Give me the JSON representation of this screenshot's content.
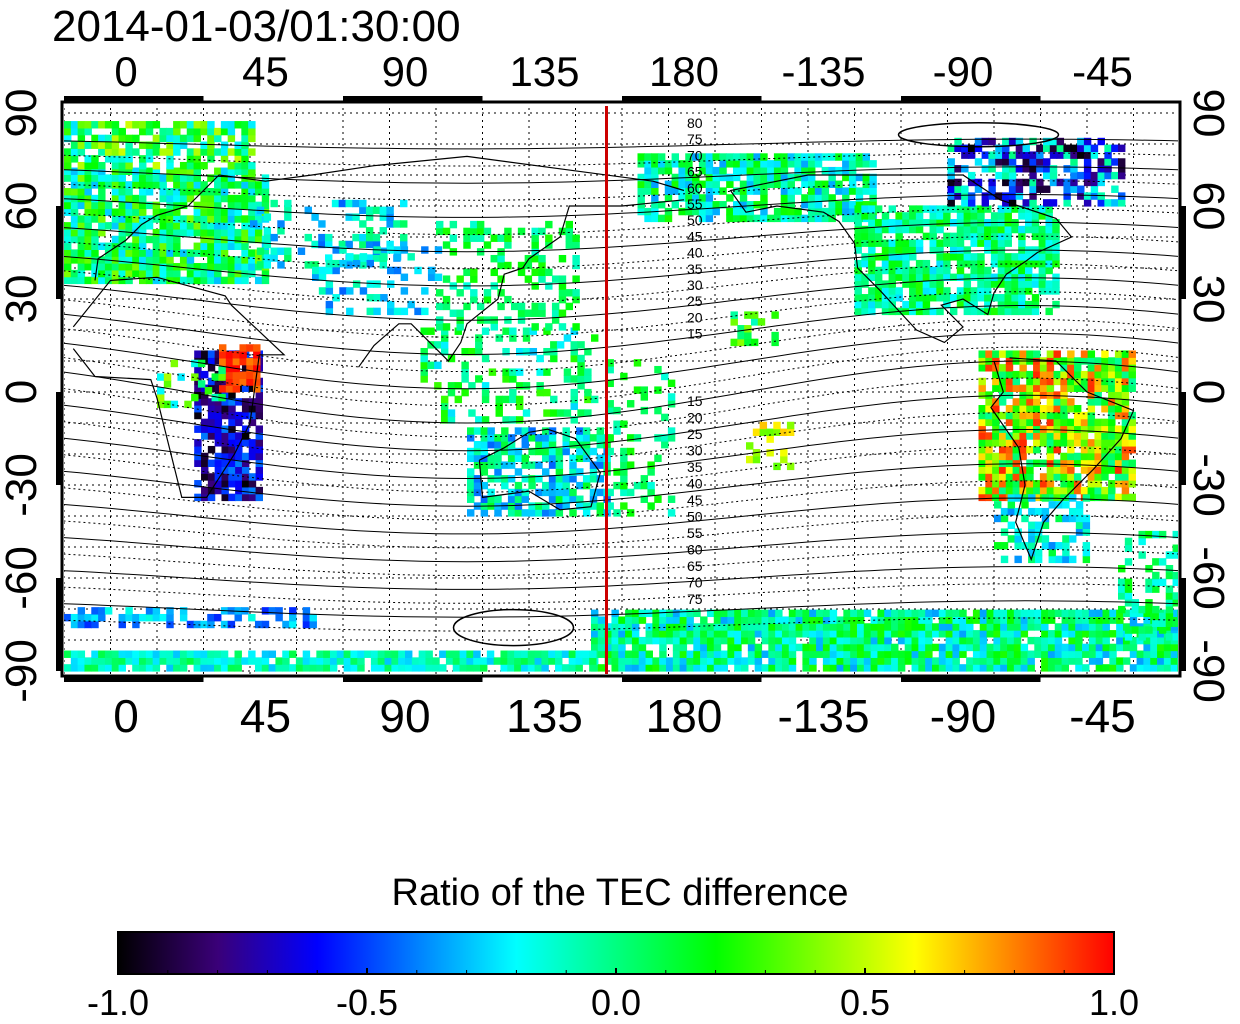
{
  "timestamp": "2014-01-03/01:30:00",
  "map": {
    "top_lon_ticks": [
      "0",
      "45",
      "90",
      "135",
      "180",
      "-135",
      "-90",
      "-45"
    ],
    "bottom_lon_ticks": [
      "0",
      "45",
      "90",
      "135",
      "180",
      "-135",
      "-90",
      "-45"
    ],
    "left_lat_ticks": [
      "90",
      "60",
      "30",
      "0",
      "-30",
      "-60",
      "-90"
    ],
    "right_lat_ticks": [
      "90",
      "60",
      "30",
      "0",
      "-30",
      "-60",
      "-90"
    ],
    "contour_labels_north": [
      "80",
      "75",
      "70",
      "65",
      "60",
      "55",
      "50",
      "45",
      "40",
      "35",
      "30",
      "25",
      "20",
      "15"
    ],
    "contour_labels_south": [
      "15",
      "20",
      "25",
      "30",
      "35",
      "40",
      "45",
      "50",
      "55",
      "60",
      "65",
      "70",
      "75"
    ],
    "meridian_marker_color": "#cc0000",
    "meridian_marker_lon": 155
  },
  "colorbar": {
    "title": "Ratio of the TEC difference",
    "tick_labels": [
      "-1.0",
      "-0.5",
      "0.0",
      "0.5",
      "1.0"
    ],
    "range": [
      -1.0,
      1.0
    ],
    "colors": [
      "#000000",
      "#3a0078",
      "#0000ff",
      "#0080ff",
      "#00ffff",
      "#00ff80",
      "#00ff00",
      "#80ff00",
      "#ffff00",
      "#ff8000",
      "#ff0000"
    ]
  }
}
